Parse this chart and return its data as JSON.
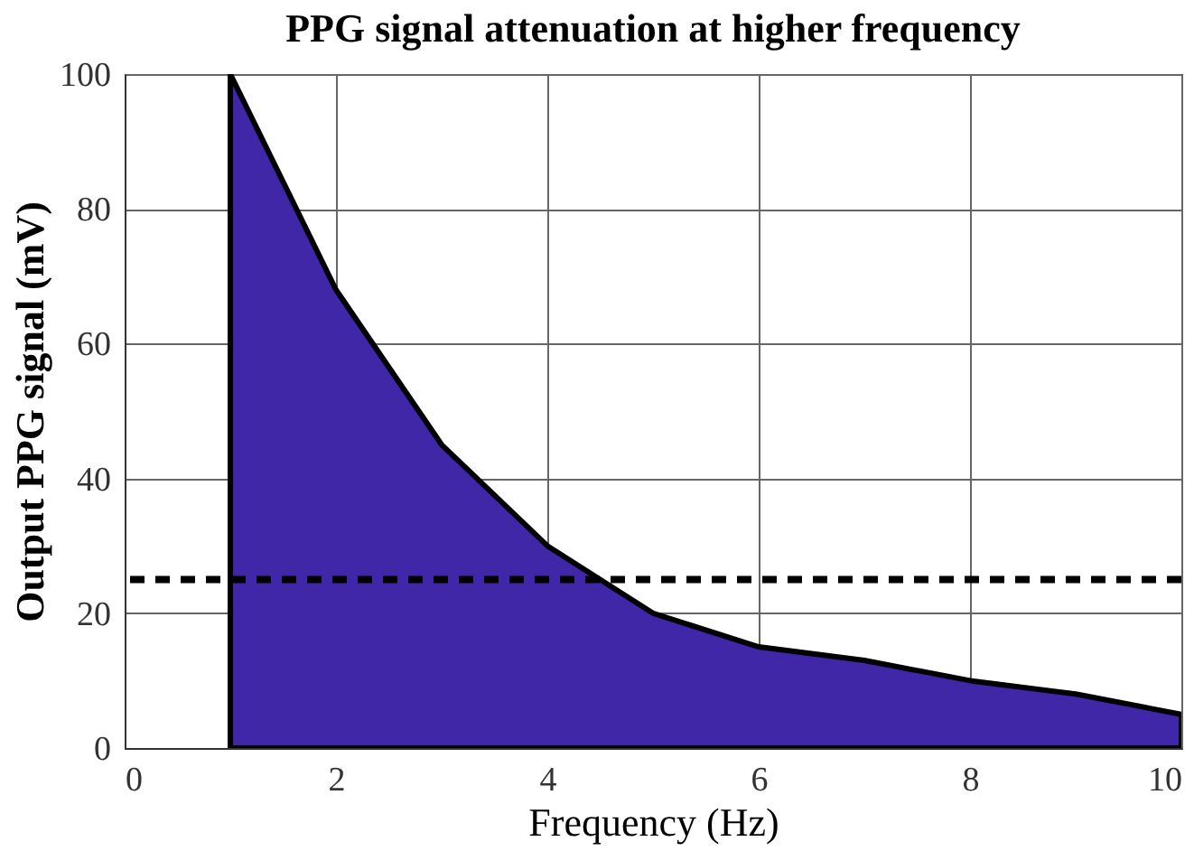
{
  "chart_data": {
    "type": "area",
    "title": "PPG signal attenuation at higher frequency",
    "xlabel": "Frequency (Hz)",
    "ylabel": "Output PPG signal (mV)",
    "x": [
      1,
      2,
      3,
      4,
      5,
      6,
      7,
      8,
      9,
      10
    ],
    "series": [
      {
        "color": "#3f27a8",
        "values": [
          100,
          68,
          45,
          30,
          20,
          15,
          13,
          10,
          8,
          5
        ]
      }
    ],
    "xlim": [
      0,
      10
    ],
    "ylim": [
      0,
      100
    ],
    "xticks": [
      0,
      2,
      4,
      6,
      8,
      10
    ],
    "yticks": [
      0,
      20,
      40,
      60,
      80,
      100
    ],
    "ref_lines": [
      {
        "axis": "y",
        "value": 25,
        "color": "#000000",
        "line_style": "dashed"
      }
    ],
    "grid": true
  }
}
